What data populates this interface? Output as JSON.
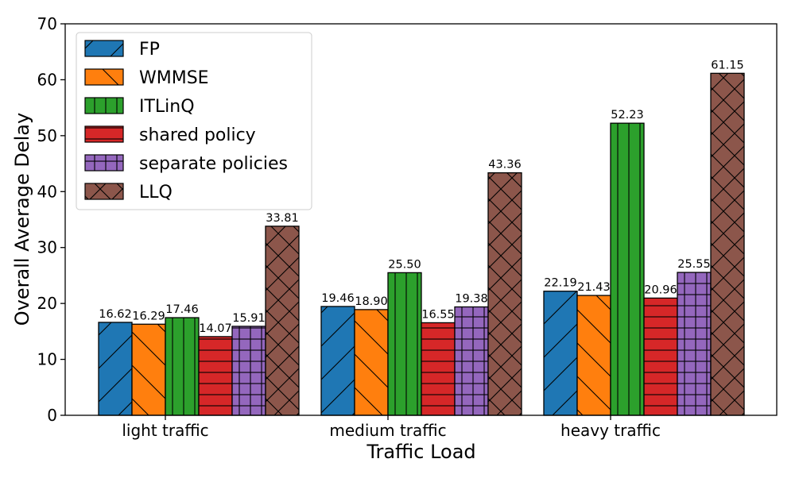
{
  "chart_data": {
    "type": "bar",
    "xlabel": "Traffic Load",
    "ylabel": "Overall Average Delay",
    "ylim": [
      0,
      70
    ],
    "yticks": [
      0,
      10,
      20,
      30,
      40,
      50,
      60,
      70
    ],
    "categories": [
      "light traffic",
      "medium traffic",
      "heavy traffic"
    ],
    "legend_position": "top-left",
    "grid": false,
    "series": [
      {
        "name": "FP",
        "values": [
          16.62,
          19.46,
          22.19
        ],
        "labels": [
          "16.62",
          "19.46",
          "22.19"
        ],
        "color": "#1f77b4",
        "hatch": "forward-diagonal"
      },
      {
        "name": "WMMSE",
        "values": [
          16.29,
          18.9,
          21.43
        ],
        "labels": [
          "16.29",
          "18.90",
          "21.43"
        ],
        "color": "#ff7f0e",
        "hatch": "back-diagonal"
      },
      {
        "name": "ITLinQ",
        "values": [
          17.46,
          25.5,
          52.23
        ],
        "labels": [
          "17.46",
          "25.50",
          "52.23"
        ],
        "color": "#2ca02c",
        "hatch": "vertical"
      },
      {
        "name": "shared policy",
        "values": [
          14.07,
          16.55,
          20.96
        ],
        "labels": [
          "14.07",
          "16.55",
          "20.96"
        ],
        "color": "#d62728",
        "hatch": "horizontal"
      },
      {
        "name": "separate policies",
        "values": [
          15.91,
          19.38,
          25.55
        ],
        "labels": [
          "15.91",
          "19.38",
          "25.55"
        ],
        "color": "#9467bd",
        "hatch": "grid"
      },
      {
        "name": "LLQ",
        "values": [
          33.81,
          43.36,
          61.15
        ],
        "labels": [
          "33.81",
          "43.36",
          "61.15"
        ],
        "color": "#8c564b",
        "hatch": "cross-diagonal"
      }
    ]
  }
}
